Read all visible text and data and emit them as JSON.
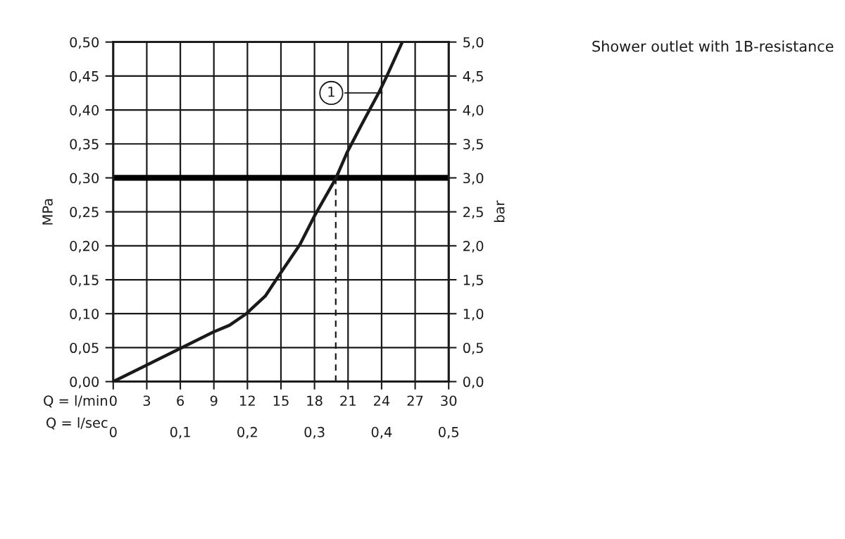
{
  "chart_data": {
    "type": "line",
    "title": "Shower outlet with 1B-resistance",
    "xlabel": "Q = l/min",
    "x2label": "Q = l/sec",
    "ylabel": "MPa",
    "y2label": "bar",
    "xlim": [
      0,
      30
    ],
    "xticks": [
      0,
      3,
      6,
      9,
      12,
      15,
      18,
      21,
      24,
      27,
      30
    ],
    "x2lim": [
      0,
      0.5
    ],
    "x2ticks": [
      0,
      {
        "value": 0.1,
        "label": "0,1"
      },
      {
        "value": 0.2,
        "label": "0,2"
      },
      {
        "value": 0.3,
        "label": "0,3"
      },
      {
        "value": 0.4,
        "label": "0,4"
      },
      {
        "value": 0.5,
        "label": "0,5"
      }
    ],
    "ylim": [
      0,
      0.5
    ],
    "yticks": [
      {
        "value": 0,
        "label": "0,00"
      },
      {
        "value": 0.05,
        "label": "0,05"
      },
      {
        "value": 0.1,
        "label": "0,10"
      },
      {
        "value": 0.15,
        "label": "0,15"
      },
      {
        "value": 0.2,
        "label": "0,20"
      },
      {
        "value": 0.25,
        "label": "0,25"
      },
      {
        "value": 0.3,
        "label": "0,30"
      },
      {
        "value": 0.35,
        "label": "0,35"
      },
      {
        "value": 0.4,
        "label": "0,40"
      },
      {
        "value": 0.45,
        "label": "0,45"
      },
      {
        "value": 0.5,
        "label": "0,50"
      }
    ],
    "y2lim": [
      0,
      5
    ],
    "y2ticks": [
      {
        "value": 0,
        "label": "0,0"
      },
      {
        "value": 0.5,
        "label": "0,5"
      },
      {
        "value": 1,
        "label": "1,0"
      },
      {
        "value": 1.5,
        "label": "1,5"
      },
      {
        "value": 2,
        "label": "2,0"
      },
      {
        "value": 2.5,
        "label": "2,5"
      },
      {
        "value": 3,
        "label": "3,0"
      },
      {
        "value": 3.5,
        "label": "3,5"
      },
      {
        "value": 4,
        "label": "4,0"
      },
      {
        "value": 4.5,
        "label": "4,5"
      },
      {
        "value": 5,
        "label": "5,0"
      }
    ],
    "grid": true,
    "marker": "none",
    "series": [
      {
        "color": "#1a1a1a",
        "line_style": "solid",
        "x": [
          0,
          2.95,
          6,
          8.95,
          10.4,
          11.9,
          13.6,
          14.85,
          16.7,
          18.0,
          19.9,
          20.9,
          22.2,
          23.8,
          24.5,
          25.85
        ],
        "values": [
          0,
          0.024,
          0.049,
          0.073,
          0.083,
          0.1,
          0.126,
          0.157,
          0.202,
          0.244,
          0.299,
          0.337,
          0.378,
          0.427,
          0.451,
          0.5
        ]
      },
      {
        "color": "#1a1a1a",
        "line_style": "dashed",
        "x": [
          19.9,
          19.9
        ],
        "values": [
          0,
          0.3
        ]
      }
    ],
    "ref_lines": [
      {
        "axis": "y",
        "value": 0.3,
        "color": "#000000",
        "line_style": "solid"
      }
    ],
    "annotations": [
      {
        "text": "1",
        "x": 19.5,
        "y": 0.425
      }
    ]
  }
}
